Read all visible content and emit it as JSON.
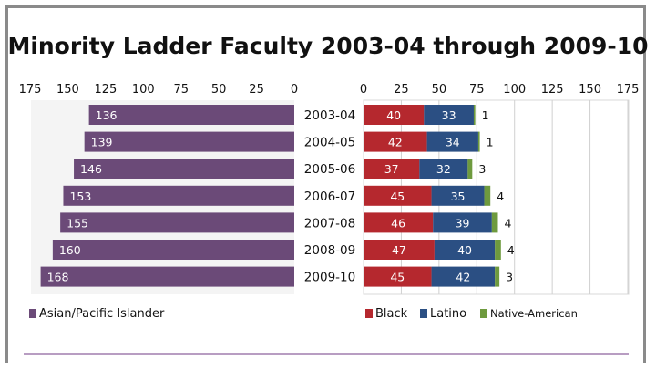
{
  "chart_data": {
    "type": "bar",
    "orientation": "horizontal",
    "layout": "butterfly",
    "title": "Minority Ladder Faculty 2003-04 through 2009-10",
    "categories": [
      "2003-04",
      "2004-05",
      "2005-06",
      "2006-07",
      "2007-08",
      "2008-09",
      "2009-10"
    ],
    "left_panel": {
      "series": [
        {
          "name": "Asian/Pacific Islander",
          "values": [
            136,
            139,
            146,
            153,
            155,
            160,
            168
          ],
          "color": "#6b4a78"
        }
      ],
      "xlim": [
        175,
        0
      ],
      "ticks": [
        "175",
        "150",
        "125",
        "100",
        "75",
        "50",
        "25",
        "0"
      ]
    },
    "right_panel": {
      "stacked": true,
      "series": [
        {
          "name": "Black",
          "values": [
            40,
            42,
            37,
            45,
            46,
            47,
            45
          ],
          "color": "#b5282e"
        },
        {
          "name": "Latino",
          "values": [
            33,
            34,
            32,
            35,
            39,
            40,
            42
          ],
          "color": "#2b4f83"
        },
        {
          "name": "Native-American",
          "values": [
            1,
            1,
            3,
            4,
            4,
            4,
            3
          ],
          "color": "#6e9a3e"
        }
      ],
      "xlim": [
        0,
        175
      ],
      "ticks": [
        "0",
        "25",
        "50",
        "75",
        "100",
        "125",
        "150",
        "175"
      ]
    },
    "grid": true,
    "legend_position": "bottom"
  }
}
